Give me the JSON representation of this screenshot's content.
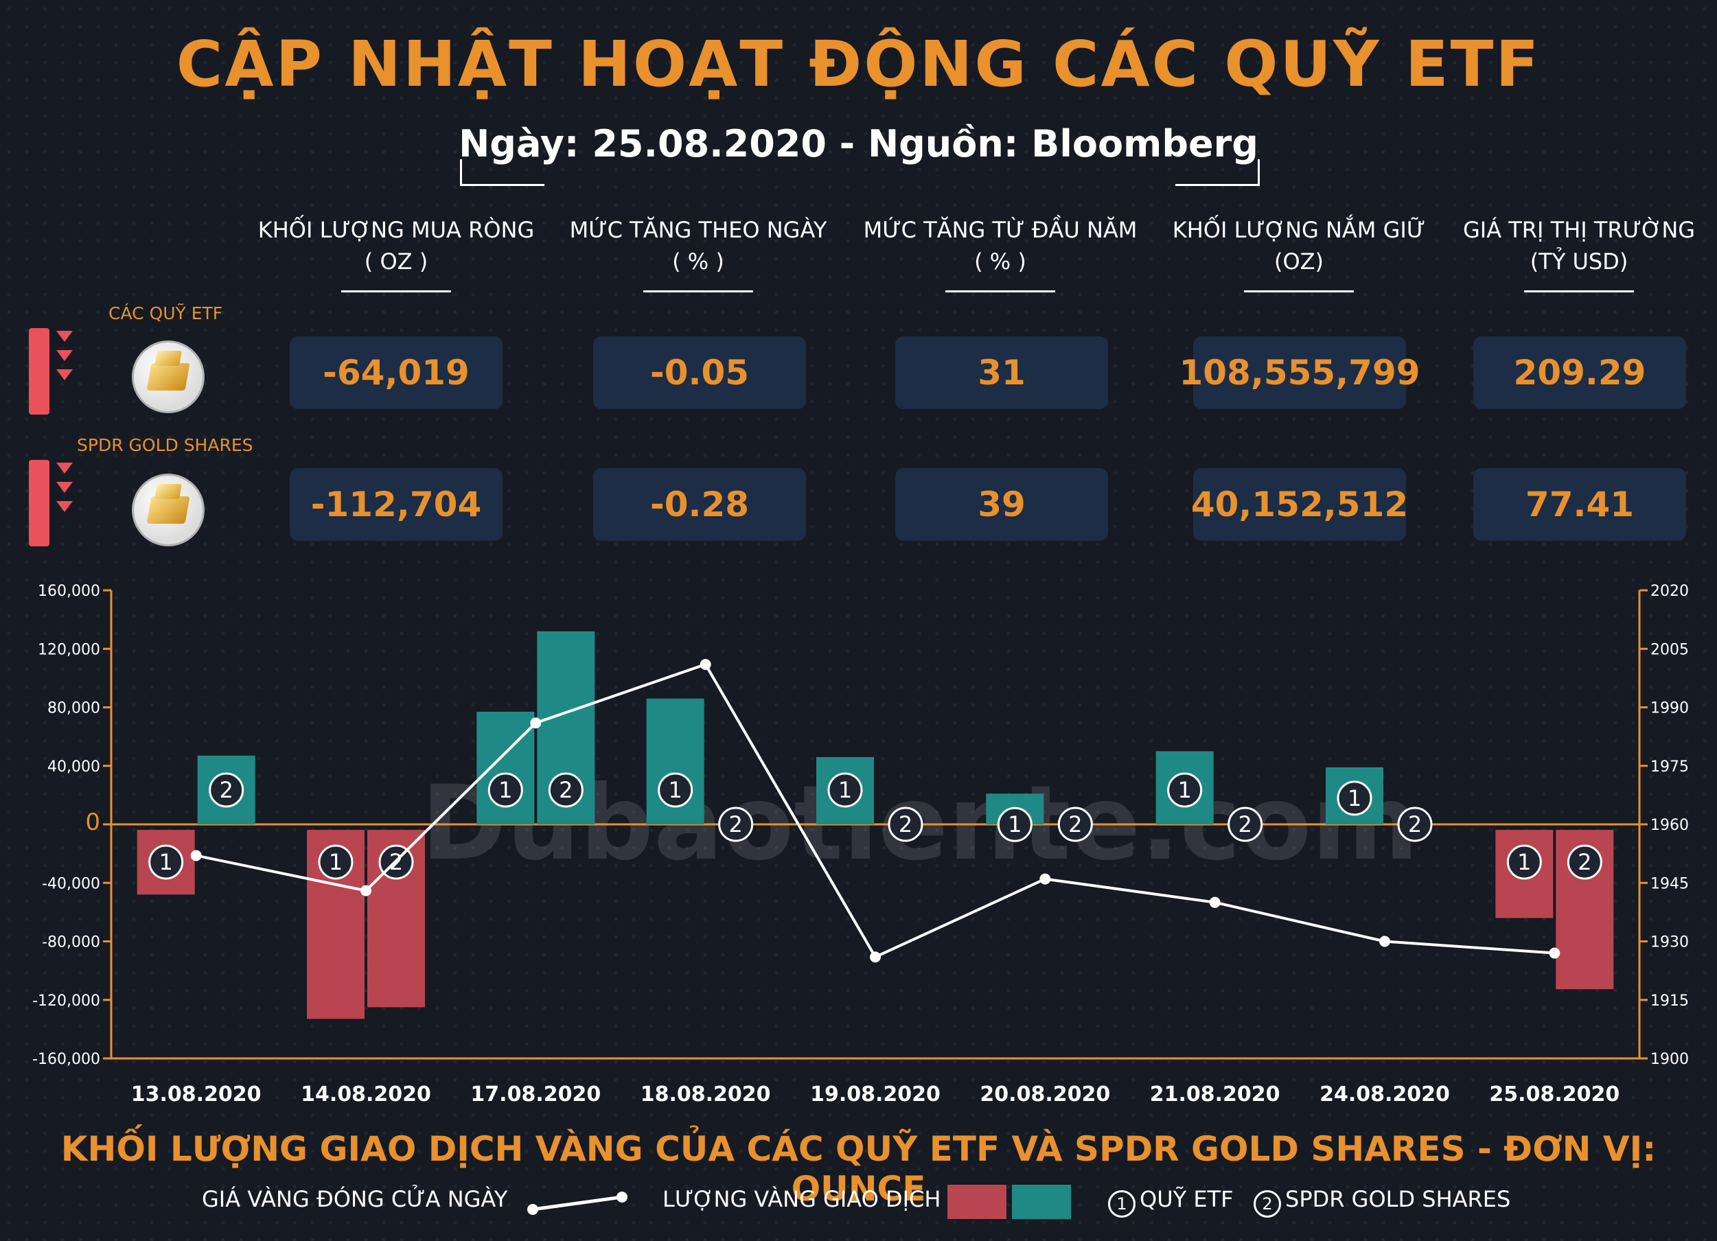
{
  "title": "CẬP NHẬT HOẠT ĐỘNG CÁC QUỸ ETF",
  "subtitle": "Ngày: 25.08.2020 - Nguồn: Bloomberg",
  "columns": [
    {
      "line1": "KHỐI LƯỢNG MUA RÒNG",
      "line2": "( OZ )"
    },
    {
      "line1": "MỨC TĂNG THEO NGÀY",
      "line2": "( % )"
    },
    {
      "line1": "MỨC TĂNG TỪ ĐẦU NĂM",
      "line2": "( % )"
    },
    {
      "line1": "KHỐI LƯỢNG NẮM GIỮ",
      "line2": "(OZ)"
    },
    {
      "line1": "GIÁ TRỊ THỊ TRƯỜNG",
      "line2": "(TỶ USD)"
    }
  ],
  "funds": [
    {
      "label": "CÁC QUỸ ETF",
      "values": [
        "-64,019",
        "-0.05",
        "31",
        "108,555,799",
        "209.29"
      ]
    },
    {
      "label": "SPDR GOLD SHARES",
      "values": [
        "-112,704",
        "-0.28",
        "39",
        "40,152,512",
        "77.41"
      ]
    }
  ],
  "colors": {
    "accent": "#e8912d",
    "negative": "#b8454f",
    "positive": "#1f8a85",
    "price_line": "#ffffff",
    "background": "#161a23"
  },
  "chart_data": {
    "type": "bar",
    "title": "KHỐI LƯỢNG GIAO DỊCH VÀNG CỦA CÁC QUỸ ETF VÀ SPDR GOLD SHARES - ĐƠN VỊ: OUNCE",
    "categories": [
      "13.08.2020",
      "14.08.2020",
      "17.08.2020",
      "18.08.2020",
      "19.08.2020",
      "20.08.2020",
      "21.08.2020",
      "24.08.2020",
      "25.08.2020"
    ],
    "series": [
      {
        "name": "QUỸ ETF",
        "marker": "1",
        "values": [
          -48000,
          -133000,
          77000,
          86000,
          46000,
          21000,
          50000,
          39000,
          -64019
        ]
      },
      {
        "name": "SPDR GOLD SHARES",
        "marker": "2",
        "values": [
          47000,
          -125000,
          132000,
          0,
          0,
          0,
          0,
          0,
          -112704
        ]
      },
      {
        "name": "GIÁ VÀNG ĐÓNG CỬA NGÀY",
        "axis": "right",
        "type": "line",
        "values": [
          1952,
          1943,
          1986,
          2001,
          1926,
          1946,
          1940,
          1930,
          1927
        ]
      }
    ],
    "ylim": [
      -160000,
      160000
    ],
    "yticks": [
      "160,000",
      "120,000",
      "80,000",
      "40,000",
      "0",
      "-40,000",
      "-80,000",
      "-120,000",
      "-160,000"
    ],
    "y2lim": [
      1900,
      2020
    ],
    "y2ticks": [
      "2020",
      "2005",
      "1990",
      "1975",
      "1960",
      "1945",
      "1930",
      "1915",
      "1900"
    ],
    "grid": false,
    "legend_position": "bottom"
  },
  "legend": {
    "price_label": "GIÁ VÀNG ĐÓNG CỬA NGÀY",
    "volume_label": "LƯỢNG VÀNG GIAO DỊCH",
    "marker1_num": "1",
    "marker1_label": "QUỸ ETF",
    "marker2_num": "2",
    "marker2_label": "SPDR GOLD SHARES"
  },
  "watermark": "Dubaotiente.com"
}
